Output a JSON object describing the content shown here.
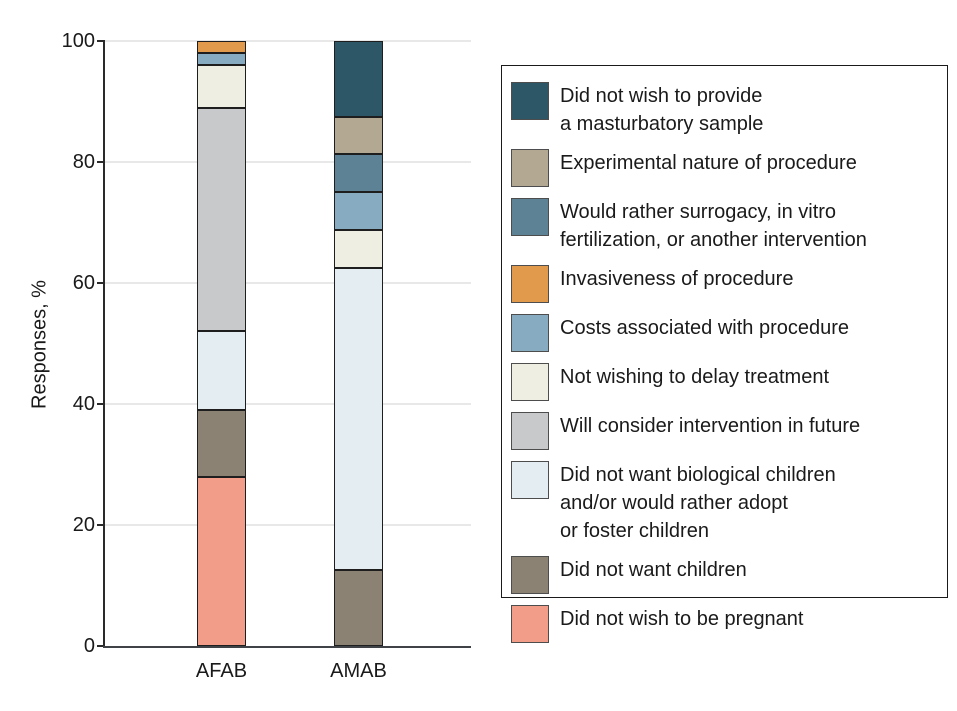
{
  "chart_data": {
    "type": "bar",
    "subtype": "stacked-vertical",
    "title": "",
    "ylabel": "Responses, %",
    "xlabel": "",
    "ylim": [
      0,
      100
    ],
    "yticks": [
      0,
      20,
      40,
      60,
      80,
      100
    ],
    "grid": "horizontal light-gray lines at 20, 40, 60, 80, 100",
    "legend_position": "right-boxed",
    "categories": [
      "AFAB",
      "AMAB"
    ],
    "series": [
      {
        "name": "Did not wish to be pregnant",
        "color": "#F29D8A",
        "values": [
          28,
          0
        ]
      },
      {
        "name": "Did not want children",
        "color": "#8B8273",
        "values": [
          11,
          12.5
        ]
      },
      {
        "name": "Did not want biological children and/or would rather adopt or foster children",
        "color": "#E4EDF2",
        "values": [
          13,
          50
        ]
      },
      {
        "name": "Will consider intervention in future",
        "color": "#C7C9CB",
        "values": [
          37,
          0
        ]
      },
      {
        "name": "Not wishing to delay treatment",
        "color": "#EFEEE2",
        "values": [
          7,
          6.25
        ]
      },
      {
        "name": "Costs associated with procedure",
        "color": "#87ABC0",
        "values": [
          2,
          6.25
        ]
      },
      {
        "name": "Would rather surrogacy, in vitro fertilization, or another intervention",
        "color": "#5D8295",
        "values": [
          0,
          6.25
        ]
      },
      {
        "name": "Invasiveness of procedure",
        "color": "#E19A4B",
        "values": [
          2,
          0
        ]
      },
      {
        "name": "Experimental nature of procedure",
        "color": "#B3A892",
        "values": [
          0,
          6.25
        ]
      },
      {
        "name": "Did not wish to provide a masturbatory sample",
        "color": "#2D5666",
        "values": [
          0,
          12.5
        ]
      }
    ],
    "legend_top_to_bottom": [
      {
        "color": "#2D5666",
        "lines": [
          "Did not wish to provide",
          "a masturbatory sample"
        ]
      },
      {
        "color": "#B3A892",
        "lines": [
          "Experimental nature of procedure"
        ]
      },
      {
        "color": "#5D8295",
        "lines": [
          "Would rather surrogacy, in vitro",
          "fertilization, or another intervention"
        ]
      },
      {
        "color": "#E19A4B",
        "lines": [
          "Invasiveness of procedure"
        ]
      },
      {
        "color": "#87ABC0",
        "lines": [
          "Costs associated with procedure"
        ]
      },
      {
        "color": "#EFEEE2",
        "lines": [
          "Not wishing to delay treatment"
        ]
      },
      {
        "color": "#C7C9CB",
        "lines": [
          "Will consider intervention in future"
        ]
      },
      {
        "color": "#E4EDF2",
        "lines": [
          "Did not want biological children",
          "and/or would rather adopt",
          "or foster children"
        ]
      },
      {
        "color": "#8B8273",
        "lines": [
          "Did not want children"
        ]
      },
      {
        "color": "#F29D8A",
        "lines": [
          "Did not wish to be pregnant"
        ]
      }
    ],
    "colors": {
      "text": "#1a1a1a",
      "gridline": "#e8e8e8",
      "y_axis": "#2a2a2a",
      "baseline": "#3f4246",
      "segment_border": "#1e1e1e"
    }
  }
}
